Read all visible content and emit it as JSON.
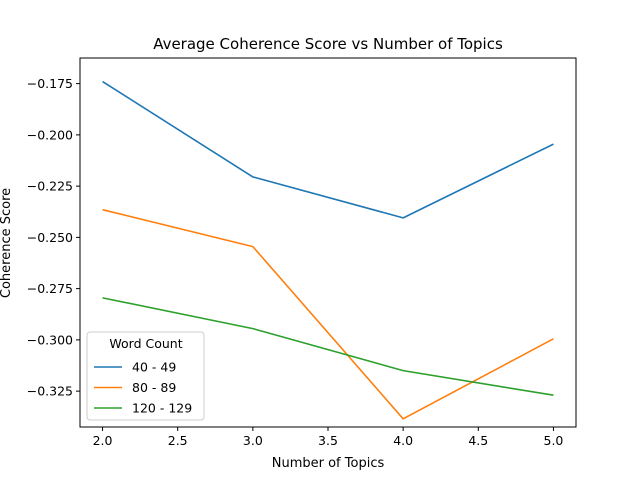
{
  "chart_data": {
    "type": "line",
    "title": "Average Coherence Score vs Number of Topics",
    "xlabel": "Number of Topics",
    "ylabel": "Coherence Score",
    "x": [
      2.0,
      3.0,
      4.0,
      5.0
    ],
    "xlim": [
      1.85,
      5.15
    ],
    "ylim": [
      -0.3425,
      -0.1625
    ],
    "xticks": [
      2.0,
      2.5,
      3.0,
      3.5,
      4.0,
      4.5,
      5.0
    ],
    "xtick_labels": [
      "2.0",
      "2.5",
      "3.0",
      "3.5",
      "4.0",
      "4.5",
      "5.0"
    ],
    "yticks": [
      -0.175,
      -0.2,
      -0.225,
      -0.25,
      -0.275,
      -0.3,
      -0.325
    ],
    "ytick_labels": [
      "−0.175",
      "−0.200",
      "−0.225",
      "−0.250",
      "−0.275",
      "−0.300",
      "−0.325"
    ],
    "grid": false,
    "legend": {
      "title": "Word Count",
      "placement": "lower-left"
    },
    "series": [
      {
        "name": "40 - 49",
        "color": "#1f77b4",
        "values": [
          -0.174,
          -0.2205,
          -0.2405,
          -0.2045
        ]
      },
      {
        "name": "80 - 89",
        "color": "#ff7f0e",
        "values": [
          -0.2365,
          -0.2545,
          -0.3385,
          -0.2995
        ]
      },
      {
        "name": "120 - 129",
        "color": "#2ca02c",
        "values": [
          -0.2795,
          -0.2945,
          -0.315,
          -0.327
        ]
      }
    ]
  }
}
